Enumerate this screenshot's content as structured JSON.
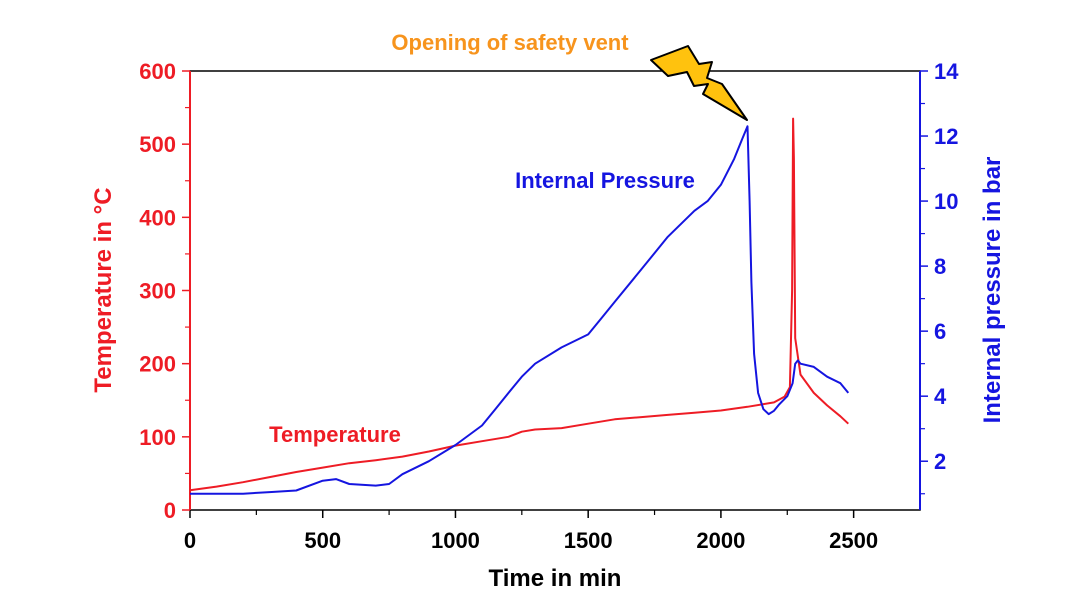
{
  "chart_data": {
    "type": "line",
    "annotation": "Opening of safety vent",
    "xlabel": "Time in min",
    "ylabel_left": "Temperature in °C",
    "ylabel_right": "Internal pressure in bar",
    "xlim": [
      0,
      2750
    ],
    "ylim_left": [
      0,
      600
    ],
    "ylim_right": [
      0.5,
      14
    ],
    "x_ticks": [
      0,
      500,
      1000,
      1500,
      2000,
      2500
    ],
    "y_left_ticks": [
      0,
      100,
      200,
      300,
      400,
      500,
      600
    ],
    "y_right_ticks": [
      2,
      4,
      6,
      8,
      10,
      12,
      14
    ],
    "grid": false,
    "colors": {
      "temperature": "#ee1c25",
      "pressure": "#1515e0",
      "annotation": "#f7941d",
      "bolt": "#ffc20e"
    },
    "series": [
      {
        "name": "Temperature",
        "axis": "left",
        "x": [
          0,
          100,
          200,
          300,
          400,
          500,
          600,
          700,
          800,
          900,
          1000,
          1100,
          1200,
          1250,
          1300,
          1400,
          1500,
          1600,
          1700,
          1800,
          1900,
          2000,
          2100,
          2200,
          2240,
          2260,
          2268,
          2272,
          2275,
          2280,
          2300,
          2350,
          2400,
          2450,
          2480
        ],
        "values": [
          27,
          32,
          38,
          45,
          52,
          58,
          64,
          68,
          73,
          80,
          88,
          94,
          100,
          107,
          110,
          112,
          118,
          124,
          127,
          130,
          133,
          136,
          141,
          147,
          155,
          168,
          300,
          535,
          480,
          235,
          185,
          160,
          143,
          128,
          118
        ]
      },
      {
        "name": "Internal Pressure",
        "axis": "right",
        "x": [
          0,
          100,
          200,
          300,
          400,
          500,
          550,
          600,
          700,
          750,
          800,
          900,
          1000,
          1100,
          1150,
          1200,
          1250,
          1300,
          1400,
          1500,
          1550,
          1600,
          1700,
          1800,
          1900,
          1950,
          2000,
          2050,
          2080,
          2100,
          2108,
          2115,
          2125,
          2140,
          2160,
          2180,
          2200,
          2220,
          2250,
          2270,
          2280,
          2290,
          2300,
          2350,
          2400,
          2450,
          2480
        ],
        "values": [
          1.0,
          1.0,
          1.0,
          1.05,
          1.1,
          1.4,
          1.45,
          1.3,
          1.25,
          1.3,
          1.6,
          2.0,
          2.5,
          3.1,
          3.6,
          4.1,
          4.6,
          5.0,
          5.5,
          5.9,
          6.4,
          6.9,
          7.9,
          8.9,
          9.7,
          10.0,
          10.5,
          11.3,
          11.9,
          12.3,
          10.0,
          7.5,
          5.3,
          4.1,
          3.6,
          3.45,
          3.55,
          3.75,
          4.0,
          4.4,
          5.0,
          5.1,
          5.0,
          4.9,
          4.6,
          4.4,
          4.1
        ]
      }
    ],
    "series_labels": [
      {
        "text": "Temperature",
        "series": "Temperature"
      },
      {
        "text": "Internal Pressure",
        "series": "Internal Pressure"
      }
    ]
  }
}
